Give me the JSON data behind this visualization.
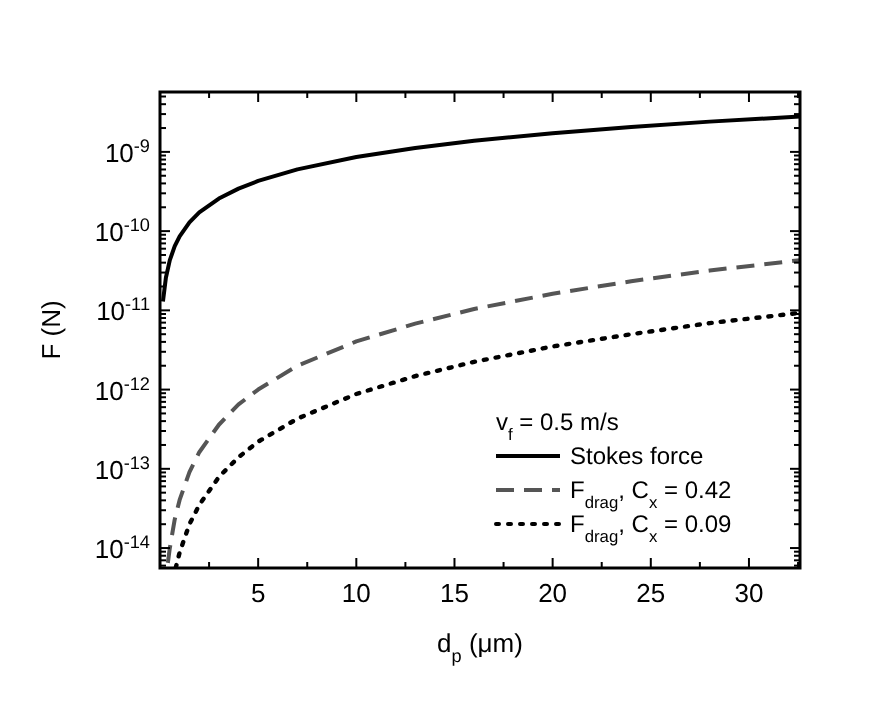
{
  "chart_data": {
    "type": "line",
    "xlabel": "d$_{p}$ (μm)",
    "ylabel": "F (N)",
    "log": "y",
    "xlim": [
      0,
      32.6
    ],
    "ylim": [
      5.6e-15,
      5.7e-09
    ],
    "xticks": [
      {
        "value": 2.5,
        "label": null
      },
      5,
      {
        "value": 7.5,
        "label": null
      },
      10,
      {
        "value": 12.5,
        "label": null
      },
      15,
      {
        "value": 17.5,
        "label": null
      },
      20,
      {
        "value": 22.5,
        "label": null
      },
      25,
      {
        "value": 27.5,
        "label": null
      },
      30,
      {
        "value": 32.5,
        "label": null
      }
    ],
    "yticks": [
      {
        "value": 6e-15,
        "label": null
      },
      {
        "value": 7e-15,
        "label": null
      },
      {
        "value": 8e-15,
        "label": null
      },
      {
        "value": 9e-15,
        "label": null
      },
      {
        "value": 1e-14,
        "label": "10$^{-14}$"
      },
      {
        "value": 2e-14,
        "label": null
      },
      {
        "value": 3e-14,
        "label": null
      },
      {
        "value": 4e-14,
        "label": null
      },
      {
        "value": 5e-14,
        "label": null
      },
      {
        "value": 6e-14,
        "label": null
      },
      {
        "value": 7e-14,
        "label": null
      },
      {
        "value": 8e-14,
        "label": null
      },
      {
        "value": 9e-14,
        "label": null
      },
      {
        "value": 1e-13,
        "label": "10$^{-13}$"
      },
      {
        "value": 2e-13,
        "label": null
      },
      {
        "value": 3e-13,
        "label": null
      },
      {
        "value": 4e-13,
        "label": null
      },
      {
        "value": 5e-13,
        "label": null
      },
      {
        "value": 6e-13,
        "label": null
      },
      {
        "value": 7e-13,
        "label": null
      },
      {
        "value": 8e-13,
        "label": null
      },
      {
        "value": 9e-13,
        "label": null
      },
      {
        "value": 1e-12,
        "label": "10$^{-12}$"
      },
      {
        "value": 2e-12,
        "label": null
      },
      {
        "value": 3e-12,
        "label": null
      },
      {
        "value": 4e-12,
        "label": null
      },
      {
        "value": 5e-12,
        "label": null
      },
      {
        "value": 6e-12,
        "label": null
      },
      {
        "value": 7e-12,
        "label": null
      },
      {
        "value": 8e-12,
        "label": null
      },
      {
        "value": 9e-12,
        "label": null
      },
      {
        "value": 1e-11,
        "label": "10$^{-11}$"
      },
      {
        "value": 2e-11,
        "label": null
      },
      {
        "value": 3e-11,
        "label": null
      },
      {
        "value": 4e-11,
        "label": null
      },
      {
        "value": 5e-11,
        "label": null
      },
      {
        "value": 6e-11,
        "label": null
      },
      {
        "value": 7e-11,
        "label": null
      },
      {
        "value": 8e-11,
        "label": null
      },
      {
        "value": 9e-11,
        "label": null
      },
      {
        "value": 1e-10,
        "label": "10$^{-10}$"
      },
      {
        "value": 2e-10,
        "label": null
      },
      {
        "value": 3e-10,
        "label": null
      },
      {
        "value": 4e-10,
        "label": null
      },
      {
        "value": 5e-10,
        "label": null
      },
      {
        "value": 6e-10,
        "label": null
      },
      {
        "value": 7e-10,
        "label": null
      },
      {
        "value": 8e-10,
        "label": null
      },
      {
        "value": 9e-10,
        "label": null
      },
      {
        "value": 1e-09,
        "label": "10$^{-9}$"
      },
      {
        "value": 2e-09,
        "label": null
      },
      {
        "value": 3e-09,
        "label": null
      },
      {
        "value": 4e-09,
        "label": null
      },
      {
        "value": 5e-09,
        "label": null
      }
    ],
    "grid": false,
    "legend": "bottom right",
    "legend_title": "v$_{f}$ = 0.5 m/s",
    "series": [
      {
        "name": "Stokes force",
        "color": "#000000",
        "line_style": "solid",
        "x": [
          0.15,
          0.3,
          0.5,
          0.75,
          1,
          1.5,
          2,
          3,
          4,
          5,
          7,
          10,
          13,
          16,
          20,
          24,
          28,
          32.6
        ],
        "values": [
          1.29e-11,
          2.58e-11,
          4.3e-11,
          6.45e-11,
          8.6e-11,
          1.29e-10,
          1.72e-10,
          2.58e-10,
          3.44e-10,
          4.3e-10,
          6.02e-10,
          8.6e-10,
          1.12e-09,
          1.38e-09,
          1.72e-09,
          2.06e-09,
          2.41e-09,
          2.8e-09
        ]
      },
      {
        "name": "F$_{drag}$, C$_{x}$ = 0.42",
        "color": "#555555",
        "line_style": "dashed",
        "x": [
          0.4,
          0.5,
          0.75,
          1,
          1.5,
          2,
          3,
          4,
          5,
          7,
          10,
          13,
          16,
          20,
          24,
          28,
          32.6
        ],
        "values": [
          6.5e-15,
          1e-14,
          2.3e-14,
          4.05e-14,
          9.1e-14,
          1.62e-13,
          3.6e-13,
          6.5e-13,
          1e-12,
          2e-12,
          4.05e-12,
          6.8e-12,
          1.04e-11,
          1.62e-11,
          2.33e-11,
          3.18e-11,
          4.3e-11
        ]
      },
      {
        "name": "F$_{drag}$, C$_{x}$ = 0.09",
        "color": "#000000",
        "line_style": "dotted",
        "x": [
          0.8,
          1,
          1.5,
          2,
          3,
          4,
          5,
          7,
          10,
          13,
          16,
          20,
          24,
          28,
          32.6
        ],
        "values": [
          5.6e-15,
          8.8e-15,
          2e-14,
          3.5e-14,
          7.9e-14,
          1.4e-13,
          2.2e-13,
          4.3e-13,
          8.8e-13,
          1.48e-12,
          2.24e-12,
          3.5e-12,
          5e-12,
          6.9e-12,
          9.3e-12
        ]
      }
    ]
  }
}
